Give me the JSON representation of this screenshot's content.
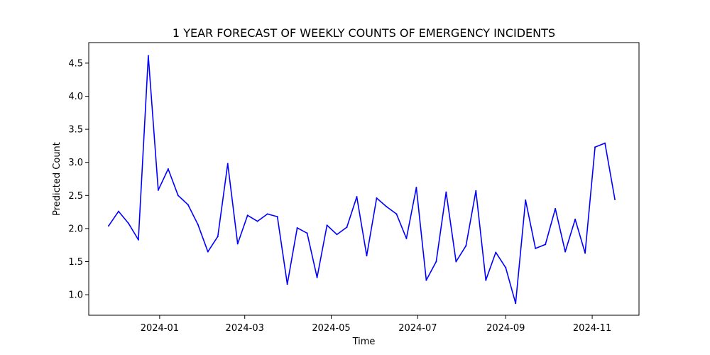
{
  "chart_data": {
    "type": "line",
    "title": "1 YEAR FORECAST OF WEEKLY COUNTS OF EMERGENCY INCIDENTS",
    "xlabel": "Time",
    "ylabel": "Predicted Count",
    "x_ticks": [
      "2024-01",
      "2024-03",
      "2024-05",
      "2024-07",
      "2024-09",
      "2024-11"
    ],
    "y_ticks": [
      "1.0",
      "1.5",
      "2.0",
      "2.5",
      "3.0",
      "3.5",
      "4.0",
      "4.5"
    ],
    "xlim": [
      "2023-11-12",
      "2024-12-04"
    ],
    "ylim": [
      0.69,
      4.81
    ],
    "grid": false,
    "series": [
      {
        "color": "#0000ff",
        "x": [
          "2023-11-26",
          "2023-12-03",
          "2023-12-10",
          "2023-12-17",
          "2023-12-24",
          "2023-12-31",
          "2024-01-07",
          "2024-01-14",
          "2024-01-21",
          "2024-01-28",
          "2024-02-04",
          "2024-02-11",
          "2024-02-18",
          "2024-02-25",
          "2024-03-03",
          "2024-03-10",
          "2024-03-17",
          "2024-03-24",
          "2024-03-31",
          "2024-04-07",
          "2024-04-14",
          "2024-04-21",
          "2024-04-28",
          "2024-05-05",
          "2024-05-12",
          "2024-05-19",
          "2024-05-26",
          "2024-06-02",
          "2024-06-09",
          "2024-06-16",
          "2024-06-23",
          "2024-06-30",
          "2024-07-07",
          "2024-07-14",
          "2024-07-21",
          "2024-07-28",
          "2024-08-04",
          "2024-08-11",
          "2024-08-18",
          "2024-08-25",
          "2024-09-01",
          "2024-09-08",
          "2024-09-15",
          "2024-09-22",
          "2024-09-29",
          "2024-10-06",
          "2024-10-13",
          "2024-10-20",
          "2024-10-27",
          "2024-11-03",
          "2024-11-10",
          "2024-11-17"
        ],
        "y": [
          2.04,
          2.26,
          2.08,
          1.83,
          4.61,
          2.58,
          2.9,
          2.5,
          2.36,
          2.06,
          1.65,
          1.88,
          2.98,
          1.77,
          2.2,
          2.11,
          2.22,
          2.18,
          1.16,
          2.01,
          1.93,
          1.26,
          2.05,
          1.91,
          2.02,
          2.48,
          1.59,
          2.46,
          2.33,
          2.22,
          1.85,
          2.62,
          1.22,
          1.5,
          2.55,
          1.5,
          1.74,
          2.57,
          1.22,
          1.64,
          1.41,
          0.87,
          2.43,
          1.7,
          1.76,
          2.3,
          1.65,
          2.14,
          1.63,
          3.23,
          3.29,
          2.44
        ]
      }
    ]
  }
}
